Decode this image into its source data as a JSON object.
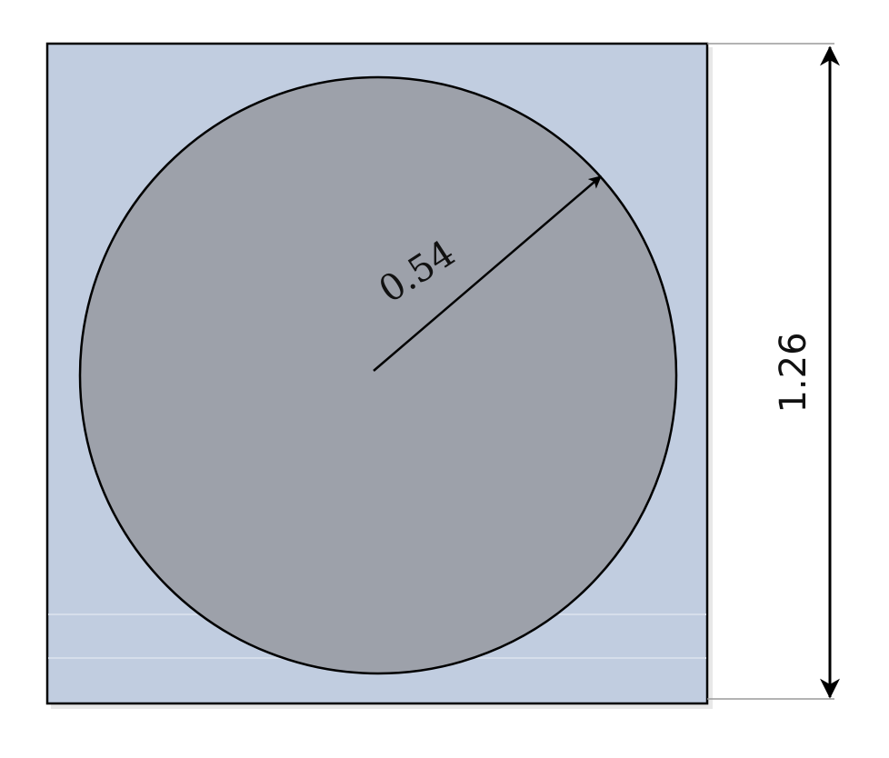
{
  "diagram": {
    "radius_label": "0.54",
    "height_label": "1.26"
  },
  "colors": {
    "square_fill": "#c1cde0",
    "circle_fill": "#9da1aa",
    "stroke": "#000000",
    "extension_line": "#9a9a9a"
  }
}
